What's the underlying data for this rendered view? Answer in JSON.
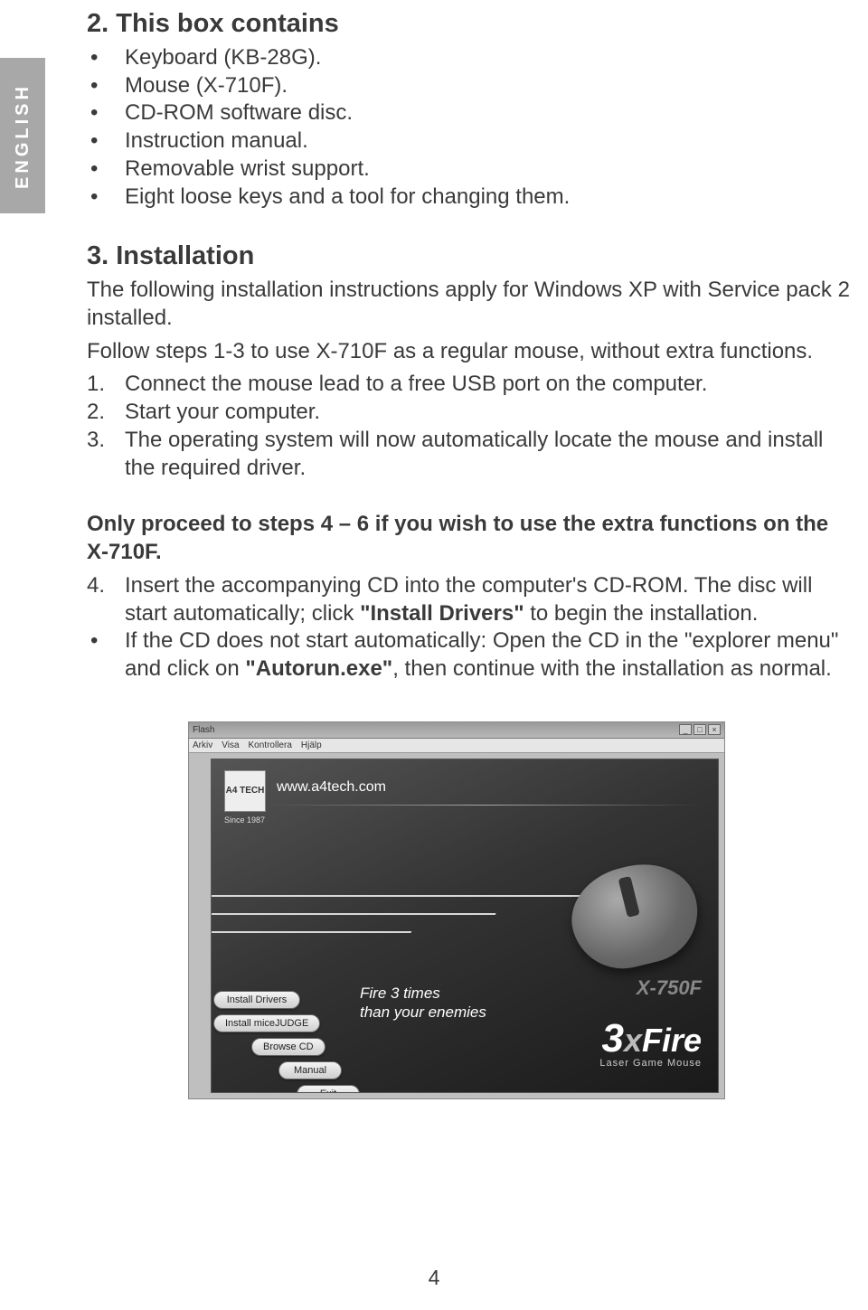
{
  "side_label": "ENGLISH",
  "section2": {
    "heading": "2. This box contains",
    "items": [
      "Keyboard (KB-28G).",
      "Mouse (X-710F).",
      "CD-ROM software disc.",
      "Instruction manual.",
      "Removable wrist support.",
      "Eight loose keys and a tool for changing them."
    ]
  },
  "section3": {
    "heading": "3. Installation",
    "intro": "The following installation instructions apply for Windows XP with Service pack 2 installed.",
    "follow": "Follow steps 1-3 to use X-710F as a regular mouse, without extra functions.",
    "steps1_3": [
      "Connect the mouse lead to a free USB port on the computer.",
      "Start your computer.",
      "The operating system will now automatically locate the mouse and install the required driver."
    ],
    "proceed": "Only proceed to steps 4 – 6 if you wish to use the extra functions on the X-710F.",
    "step4_pre": "Insert the accompanying CD into the computer's CD-ROM. The disc will start automatically; click ",
    "step4_bold": "\"Install Drivers\"",
    "step4_post": " to begin the installation.",
    "bullet_pre": "If the CD does not start automatically: Open the CD in the \"explorer menu\" and click on ",
    "bullet_bold": "\"Autorun.exe\"",
    "bullet_post": ", then continue with the installation as normal."
  },
  "screenshot": {
    "title": "Flash",
    "menu": [
      "Arkiv",
      "Visa",
      "Kontrollera",
      "Hjälp"
    ],
    "win_min": "_",
    "win_max": "□",
    "win_close": "×",
    "logo": "A4 TECH",
    "since": "Since 1987",
    "url": "www.a4tech.com",
    "slogan_l1": "Fire 3 times",
    "slogan_l2": "than your enemies",
    "model": "X-750F",
    "brand_three": "3",
    "brand_x": "x",
    "brand_fire": "Fire",
    "brand_sub": "Laser Game Mouse",
    "buttons": {
      "b1": "Install Drivers",
      "b2": "Install miceJUDGE",
      "b3": "Browse CD",
      "b4": "Manual",
      "b5": "Exit"
    },
    "colors": {
      "page_bg": "#ffffff",
      "text": "#3a3a3a",
      "sidebar_bg": "#a8a8a8",
      "splash_dark": "#1a1a1a",
      "splash_mid": "#333333",
      "button_border": "#666666"
    }
  },
  "page_number": "4"
}
